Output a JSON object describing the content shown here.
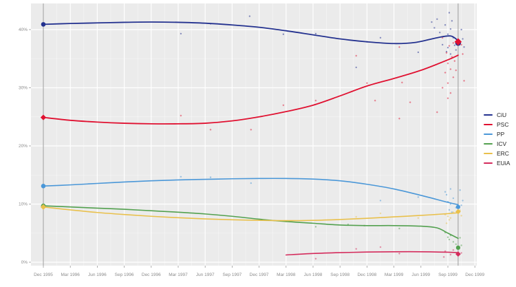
{
  "figure": {
    "panel_bg": "#ebebeb",
    "grid_color": "#ffffff",
    "axis_text_color": "#8c8c8c",
    "tick_color": "#9a9a9a",
    "election_line_color": "#9b9b9b",
    "legend_title": ""
  },
  "chart_data": {
    "type": "scatter",
    "title": "",
    "xlabel": "",
    "ylabel": "",
    "grid": true,
    "legend_position": "right",
    "x_tick_labels": [
      "Dec 1995",
      "Mar 1996",
      "Jun 1996",
      "Sep 1996",
      "Dec 1996",
      "Mar 1997",
      "Jun 1997",
      "Sep 1997",
      "Dec 1997",
      "Mar 1998",
      "Jun 1998",
      "Sep 1998",
      "Dec 1998",
      "Mar 1999",
      "Jun 1999",
      "Sep 1999",
      "Dec 1999"
    ],
    "y_ticks": [
      0,
      10,
      20,
      30,
      40
    ],
    "y_tick_labels": [
      "0%",
      "10%",
      "20%",
      "30%",
      "40%"
    ],
    "ylim": [
      -0.7,
      44.5
    ],
    "xlim_quarters": [
      -0.46,
      16.1
    ],
    "election_lines_quarters": [
      0,
      15.38
    ],
    "series": [
      {
        "name": "CiU",
        "color": "#23318f",
        "marker": "circle",
        "result_start": [
          0,
          40.9
        ],
        "result_end": [
          15.38,
          37.7
        ],
        "trend": [
          [
            0,
            40.9
          ],
          [
            1,
            41.05
          ],
          [
            2,
            41.15
          ],
          [
            3,
            41.25
          ],
          [
            4,
            41.3
          ],
          [
            5,
            41.25
          ],
          [
            6,
            41.1
          ],
          [
            7,
            40.8
          ],
          [
            8,
            40.4
          ],
          [
            9,
            39.8
          ],
          [
            10,
            39.1
          ],
          [
            11,
            38.4
          ],
          [
            12,
            37.9
          ],
          [
            13,
            37.6
          ],
          [
            13.8,
            37.8
          ],
          [
            14.6,
            38.6
          ],
          [
            15.1,
            38.9
          ],
          [
            15.38,
            38.1
          ]
        ],
        "polls": [
          [
            5.1,
            39.3
          ],
          [
            6.2,
            41.0
          ],
          [
            7.65,
            42.3
          ],
          [
            8.9,
            39.2
          ],
          [
            10.1,
            39.3
          ],
          [
            11.6,
            33.5
          ],
          [
            12.0,
            37.9
          ],
          [
            12.5,
            38.6
          ],
          [
            13.9,
            36.1
          ],
          [
            14.4,
            41.3
          ],
          [
            14.5,
            40.3
          ],
          [
            14.6,
            41.8
          ],
          [
            14.7,
            39.5
          ],
          [
            14.8,
            37.4
          ],
          [
            14.9,
            40.8
          ],
          [
            14.95,
            36.2
          ],
          [
            15.0,
            39.2
          ],
          [
            15.0,
            36.9
          ],
          [
            15.05,
            42.9
          ],
          [
            15.1,
            40.1
          ],
          [
            15.1,
            35.8
          ],
          [
            15.15,
            41.5
          ],
          [
            15.2,
            38.6
          ],
          [
            15.25,
            37.3
          ],
          [
            15.3,
            36.5
          ],
          [
            15.5,
            40.0
          ],
          [
            15.55,
            38.4
          ],
          [
            15.6,
            37.0
          ]
        ]
      },
      {
        "name": "PSC",
        "color": "#e01030",
        "marker": "diamond",
        "result_start": [
          0,
          24.9
        ],
        "result_end": [
          15.38,
          37.9
        ],
        "trend": [
          [
            0,
            24.9
          ],
          [
            1,
            24.4
          ],
          [
            2,
            24.1
          ],
          [
            3,
            23.9
          ],
          [
            4,
            23.8
          ],
          [
            5,
            23.8
          ],
          [
            6,
            23.9
          ],
          [
            7,
            24.3
          ],
          [
            8,
            25.0
          ],
          [
            9,
            25.9
          ],
          [
            10,
            27.0
          ],
          [
            11,
            28.6
          ],
          [
            12,
            30.3
          ],
          [
            13,
            31.6
          ],
          [
            14,
            33.0
          ],
          [
            15,
            34.8
          ],
          [
            15.38,
            35.6
          ]
        ],
        "polls": [
          [
            5.1,
            25.2
          ],
          [
            6.2,
            22.8
          ],
          [
            7.7,
            22.8
          ],
          [
            8.9,
            27.0
          ],
          [
            10.1,
            27.8
          ],
          [
            11.6,
            35.5
          ],
          [
            12.0,
            30.8
          ],
          [
            12.3,
            27.8
          ],
          [
            13.2,
            37.0
          ],
          [
            13.2,
            24.7
          ],
          [
            13.3,
            30.9
          ],
          [
            13.6,
            27.5
          ],
          [
            14.6,
            25.8
          ],
          [
            14.8,
            38.6
          ],
          [
            14.8,
            30.0
          ],
          [
            14.9,
            32.6
          ],
          [
            14.95,
            36.0
          ],
          [
            15.0,
            34.2
          ],
          [
            15.0,
            30.8
          ],
          [
            15.0,
            28.2
          ],
          [
            15.05,
            37.2
          ],
          [
            15.1,
            33.2
          ],
          [
            15.1,
            29.1
          ],
          [
            15.15,
            35.3
          ],
          [
            15.2,
            37.7
          ],
          [
            15.2,
            31.8
          ],
          [
            15.25,
            34.6
          ],
          [
            15.3,
            33.0
          ],
          [
            15.5,
            37.4
          ],
          [
            15.55,
            35.8
          ],
          [
            15.6,
            31.2
          ]
        ]
      },
      {
        "name": "PP",
        "color": "#4a97d8",
        "marker": "circle",
        "result_start": [
          0,
          13.1
        ],
        "result_end": [
          15.38,
          9.5
        ],
        "trend": [
          [
            0,
            13.1
          ],
          [
            1,
            13.3
          ],
          [
            2,
            13.55
          ],
          [
            3,
            13.8
          ],
          [
            4,
            14.0
          ],
          [
            5,
            14.15
          ],
          [
            6,
            14.25
          ],
          [
            7,
            14.35
          ],
          [
            8,
            14.4
          ],
          [
            9,
            14.4
          ],
          [
            10,
            14.3
          ],
          [
            11,
            14.0
          ],
          [
            12,
            13.4
          ],
          [
            13,
            12.6
          ],
          [
            14,
            11.5
          ],
          [
            15,
            10.3
          ],
          [
            15.38,
            9.9
          ]
        ],
        "polls": [
          [
            5.1,
            14.7
          ],
          [
            6.2,
            14.6
          ],
          [
            7.7,
            13.6
          ],
          [
            12.5,
            10.6
          ],
          [
            13.9,
            11.2
          ],
          [
            14.9,
            12.1
          ],
          [
            14.95,
            11.6
          ],
          [
            15.0,
            10.4
          ],
          [
            15.05,
            9.0
          ],
          [
            15.1,
            10.0
          ],
          [
            15.1,
            12.6
          ],
          [
            15.15,
            8.6
          ],
          [
            15.2,
            11.0
          ],
          [
            15.3,
            9.4
          ],
          [
            15.45,
            12.4
          ],
          [
            15.5,
            9.8
          ],
          [
            15.55,
            10.6
          ]
        ]
      },
      {
        "name": "ICV",
        "color": "#52a04e",
        "marker": "circle",
        "result_start": [
          0,
          9.7
        ],
        "result_end": [
          15.38,
          2.5
        ],
        "trend": [
          [
            0,
            9.7
          ],
          [
            1,
            9.5
          ],
          [
            2,
            9.3
          ],
          [
            3,
            9.1
          ],
          [
            4,
            8.85
          ],
          [
            5,
            8.6
          ],
          [
            6,
            8.3
          ],
          [
            7,
            7.9
          ],
          [
            8,
            7.4
          ],
          [
            9,
            7.0
          ],
          [
            10,
            6.7
          ],
          [
            11,
            6.4
          ],
          [
            12,
            6.3
          ],
          [
            13,
            6.3
          ],
          [
            14,
            6.2
          ],
          [
            14.6,
            5.9
          ],
          [
            15,
            5.0
          ],
          [
            15.38,
            4.1
          ]
        ],
        "polls": [
          [
            10.1,
            6.1
          ],
          [
            11.3,
            6.5
          ],
          [
            11.9,
            6.3
          ],
          [
            13.2,
            5.8
          ],
          [
            14.9,
            5.1
          ],
          [
            15.0,
            4.3
          ],
          [
            15.05,
            3.9
          ],
          [
            15.1,
            4.6
          ],
          [
            15.2,
            3.5
          ],
          [
            15.3,
            3.1
          ],
          [
            15.45,
            4.2
          ],
          [
            15.5,
            2.9
          ]
        ]
      },
      {
        "name": "ERC",
        "color": "#e9c04b",
        "marker": "diamond",
        "result_start": [
          0,
          9.5
        ],
        "result_end": [
          15.38,
          8.7
        ],
        "trend": [
          [
            0,
            9.5
          ],
          [
            1,
            9.0
          ],
          [
            2,
            8.55
          ],
          [
            3,
            8.2
          ],
          [
            4,
            7.9
          ],
          [
            5,
            7.65
          ],
          [
            6,
            7.45
          ],
          [
            7,
            7.3
          ],
          [
            8,
            7.2
          ],
          [
            9,
            7.15
          ],
          [
            10,
            7.2
          ],
          [
            11,
            7.35
          ],
          [
            12,
            7.55
          ],
          [
            13,
            7.8
          ],
          [
            14,
            8.05
          ],
          [
            15,
            8.35
          ],
          [
            15.38,
            8.5
          ]
        ],
        "polls": [
          [
            9.0,
            7.0
          ],
          [
            11.6,
            7.8
          ],
          [
            12.5,
            8.4
          ],
          [
            13.9,
            7.6
          ],
          [
            14.9,
            8.2
          ],
          [
            14.95,
            6.7
          ],
          [
            15.0,
            7.9
          ],
          [
            15.05,
            7.3
          ],
          [
            15.1,
            7.6
          ],
          [
            15.2,
            8.6
          ],
          [
            15.45,
            8.9
          ],
          [
            15.5,
            8.0
          ]
        ]
      },
      {
        "name": "EUiA",
        "color": "#d42a5b",
        "marker": "diamond",
        "result_start": null,
        "result_end": [
          15.38,
          1.4
        ],
        "trend": [
          [
            9,
            1.25
          ],
          [
            10,
            1.5
          ],
          [
            11,
            1.65
          ],
          [
            12,
            1.75
          ],
          [
            13,
            1.8
          ],
          [
            14,
            1.8
          ],
          [
            15,
            1.72
          ],
          [
            15.38,
            1.65
          ]
        ],
        "polls": [
          [
            10.1,
            0.6
          ],
          [
            11.6,
            2.3
          ],
          [
            12.5,
            2.6
          ],
          [
            13.2,
            1.5
          ],
          [
            14.85,
            0.9
          ],
          [
            14.9,
            1.9
          ],
          [
            15.1,
            1.3
          ],
          [
            15.2,
            2.1
          ],
          [
            15.5,
            1.6
          ]
        ]
      }
    ]
  }
}
